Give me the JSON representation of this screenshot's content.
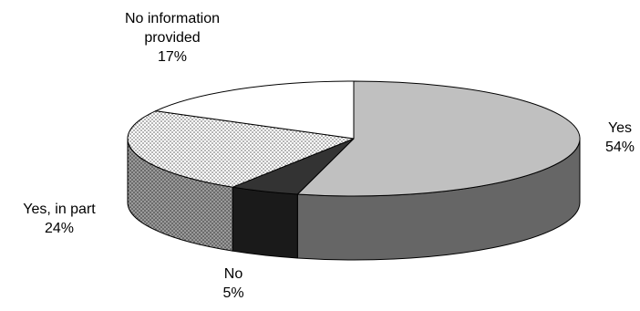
{
  "chart_data": {
    "type": "pie",
    "style": "3d",
    "title": "",
    "slices": [
      {
        "label_lines": [
          "Yes"
        ],
        "value": 54,
        "value_label": "54%",
        "color": "#c0c0c0",
        "side_color": "#666666",
        "pattern": "solid"
      },
      {
        "label_lines": [
          "No"
        ],
        "value": 5,
        "value_label": "5%",
        "color": "#333333",
        "side_color": "#1a1a1a",
        "pattern": "solid"
      },
      {
        "label_lines": [
          "Yes, in part"
        ],
        "value": 24,
        "value_label": "24%",
        "color": "#ffffff",
        "side_color": "#8c8c8c",
        "pattern": "dots"
      },
      {
        "label_lines": [
          "No information",
          "provided"
        ],
        "value": 17,
        "value_label": "17%",
        "color": "#ffffff",
        "side_color": "#ffffff",
        "pattern": "solid"
      }
    ],
    "legend": "none",
    "labels": "outside"
  }
}
